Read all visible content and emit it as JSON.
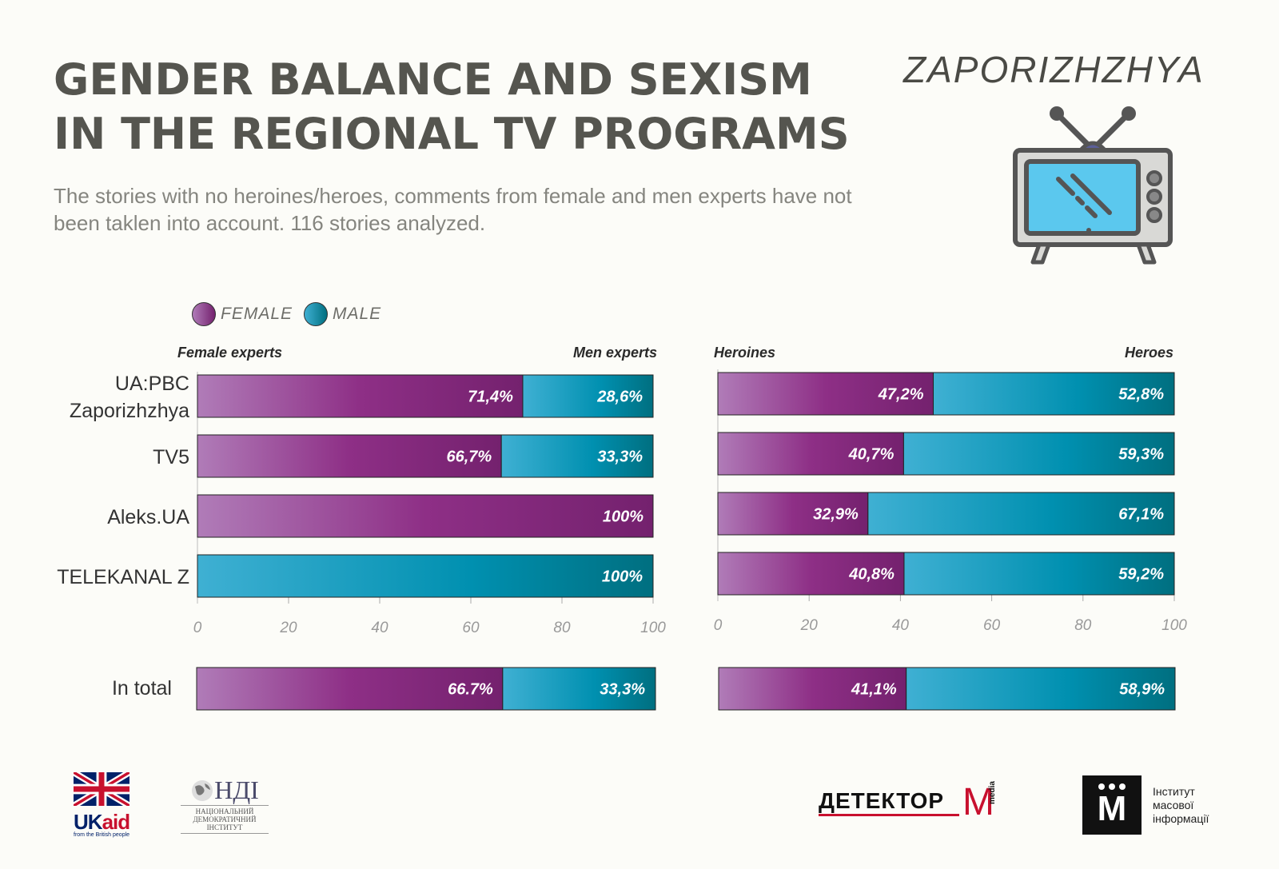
{
  "title": {
    "line1": "GENDER BALANCE AND SEXISM",
    "line2": "IN THE REGIONAL TV PROGRAMS"
  },
  "subtitle": "The stories with no heroines/heroes, comments from female and men experts have not been taklen into account. 116 stories analyzed.",
  "city": "ZAPORIZHZHYA",
  "legend": {
    "female": "FEMALE",
    "male": "MALE"
  },
  "colors": {
    "female_light": "#b07cb8",
    "female_dark": "#74216e",
    "male_light": "#3fb0d3",
    "male_dark": "#006f80"
  },
  "chart_data": [
    {
      "type": "bar",
      "stacked": true,
      "orientation": "horizontal",
      "left_header": "Female experts",
      "right_header": "Men experts",
      "categories": [
        "UA:PBC Zaporizhzhya",
        "TV5",
        "Aleks.UA",
        "TELEKANAL Z"
      ],
      "series": [
        {
          "name": "FEMALE",
          "values": [
            71.4,
            66.7,
            100,
            0
          ],
          "labels": [
            "71,4%",
            "66,7%",
            "100%",
            ""
          ]
        },
        {
          "name": "MALE",
          "values": [
            28.6,
            33.3,
            0,
            100
          ],
          "labels": [
            "28,6%",
            "33,3%",
            "",
            "100%"
          ]
        }
      ],
      "xlim": [
        0,
        100
      ],
      "xticks": [
        "0",
        "20",
        "40",
        "60",
        "80",
        "100"
      ],
      "total": {
        "label": "In total",
        "values": [
          66.7,
          33.3
        ],
        "labels": [
          "66.7%",
          "33,3%"
        ]
      }
    },
    {
      "type": "bar",
      "stacked": true,
      "orientation": "horizontal",
      "left_header": "Heroines",
      "right_header": "Heroes",
      "categories": [
        "UA:PBC Zaporizhzhya",
        "TV5",
        "Aleks.UA",
        "TELEKANAL Z"
      ],
      "series": [
        {
          "name": "FEMALE",
          "values": [
            47.2,
            40.7,
            32.9,
            40.8
          ],
          "labels": [
            "47,2%",
            "40,7%",
            "32,9%",
            "40,8%"
          ]
        },
        {
          "name": "MALE",
          "values": [
            52.8,
            59.3,
            67.1,
            59.2
          ],
          "labels": [
            "52,8%",
            "59,3%",
            "67,1%",
            "59,2%"
          ]
        }
      ],
      "xlim": [
        0,
        100
      ],
      "xticks": [
        "0",
        "20",
        "40",
        "60",
        "80",
        "100"
      ],
      "total": {
        "label": "In total",
        "values": [
          41.1,
          58.9
        ],
        "labels": [
          "41,1%",
          "58,9%"
        ]
      }
    }
  ],
  "category_labels": {
    "c1a": "UA:PBC",
    "c1b": "Zaporizhzhya",
    "c2": "TV5",
    "c3": "Aleks.UA",
    "c4": "TELEKANAL Z",
    "total": "In total"
  },
  "logos": {
    "ukaid": {
      "text1": "UK",
      "text2": "aid",
      "tagline": "from the British people"
    },
    "ndi": {
      "big": "НДІ",
      "line1": "НАЦІОНАЛЬНИЙ",
      "line2": "ДЕМОКРАТИЧНИЙ",
      "line3": "ІНСТИТУТ"
    },
    "detector": {
      "text": "ДЕТЕКТОР",
      "m": "M",
      "media": "media"
    },
    "imi": {
      "m": "M",
      "line1": "Інститут",
      "line2": "масової",
      "line3": "інформації"
    }
  }
}
